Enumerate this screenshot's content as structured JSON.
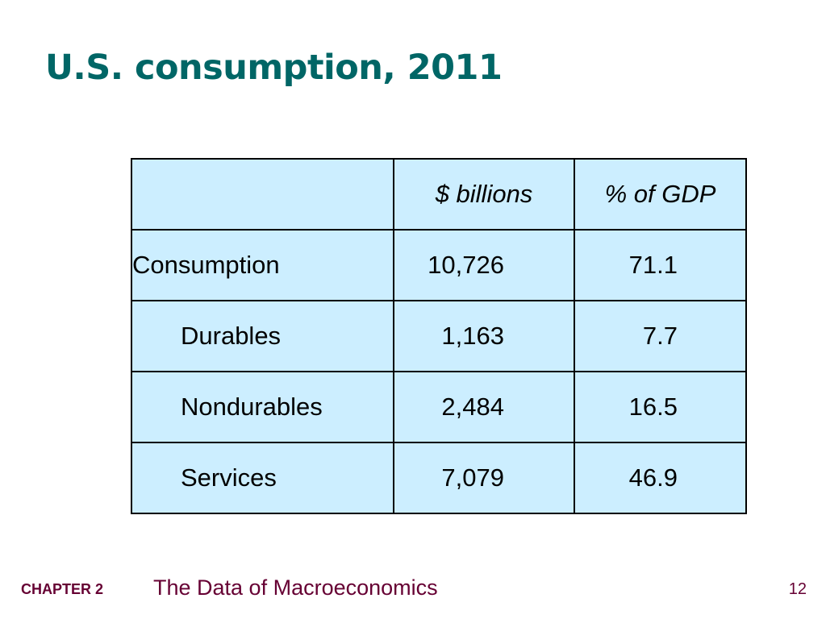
{
  "slide": {
    "title": "U.S. consumption, 2011"
  },
  "table": {
    "headers": [
      "",
      "$ billions",
      "% of GDP"
    ],
    "rows": [
      {
        "label": "Consumption",
        "billions": "10,726",
        "percent_gdp": "71.1",
        "indent": false
      },
      {
        "label": "Durables",
        "billions": "1,163",
        "percent_gdp": "7.7",
        "indent": true
      },
      {
        "label": "Nondurables",
        "billions": "2,484",
        "percent_gdp": "16.5",
        "indent": true
      },
      {
        "label": "Services",
        "billions": "7,079",
        "percent_gdp": "46.9",
        "indent": true
      }
    ]
  },
  "footer": {
    "chapter": "CHAPTER 2",
    "subject": "The Data of Macroeconomics",
    "page_number": "12"
  },
  "colors": {
    "title": "#006666",
    "table_fill": "#cceeff",
    "footer": "#660033"
  }
}
